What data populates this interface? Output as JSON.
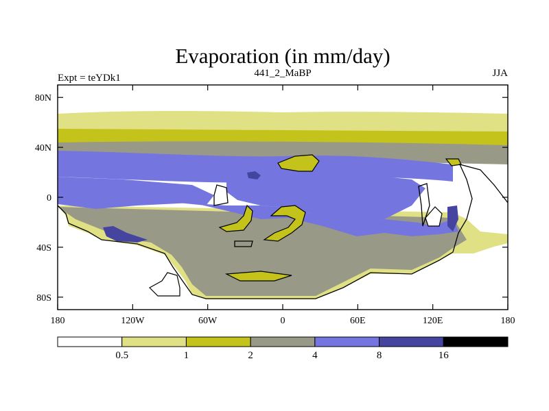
{
  "chart_data": {
    "type": "heatmap",
    "title": "Evaporation (in mm/day)",
    "subtitle_left": "Expt = teYDk1",
    "subtitle_center": "441_2_MaBP",
    "subtitle_right": "JJA",
    "x_ticks": [
      {
        "value": -180,
        "label": "180"
      },
      {
        "value": -120,
        "label": "120W"
      },
      {
        "value": -60,
        "label": "60W"
      },
      {
        "value": 0,
        "label": "0"
      },
      {
        "value": 60,
        "label": "60E"
      },
      {
        "value": 120,
        "label": "120E"
      },
      {
        "value": 180,
        "label": "180"
      }
    ],
    "y_ticks": [
      {
        "value": 80,
        "label": "80N"
      },
      {
        "value": 40,
        "label": "40N"
      },
      {
        "value": 0,
        "label": "0"
      },
      {
        "value": -40,
        "label": "40S"
      },
      {
        "value": -80,
        "label": "80S"
      }
    ],
    "xlim": [
      -180,
      180
    ],
    "ylim": [
      -90,
      90
    ],
    "colorbar": {
      "levels": [
        "0.5",
        "1",
        "2",
        "4",
        "8",
        "16"
      ],
      "colors": [
        "#ffffff",
        "#e0e084",
        "#c3c31c",
        "#999988",
        "#7575e0",
        "#4545a0",
        "#000000"
      ]
    }
  }
}
